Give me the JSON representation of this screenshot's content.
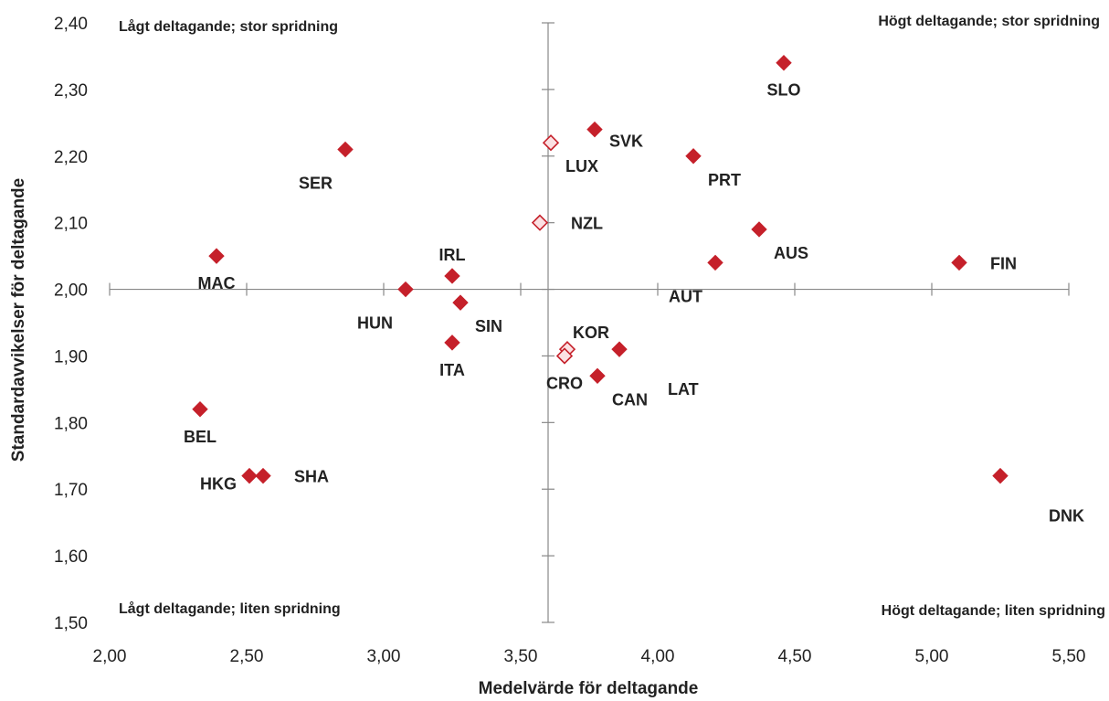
{
  "chart_data": {
    "type": "scatter",
    "title": "",
    "xlabel": "Medelvärde för deltagande",
    "ylabel": "Standardavvikelser för deltagande",
    "xlim": [
      2.0,
      5.5
    ],
    "ylim": [
      1.5,
      2.4
    ],
    "x_ticks": [
      "2,00",
      "2,50",
      "3,00",
      "3,50",
      "4,00",
      "4,50",
      "5,00",
      "5,50"
    ],
    "y_ticks": [
      "1,50",
      "1,60",
      "1,70",
      "1,80",
      "1,90",
      "2,00",
      "2,10",
      "2,20",
      "2,30",
      "2,40"
    ],
    "crosshair": {
      "x": 3.6,
      "y": 2.0
    },
    "grid": false,
    "legend": "none",
    "colors": {
      "filled": "#c5202a",
      "hollow_fill": "#fbe1e3",
      "hollow_stroke": "#c5202a"
    },
    "quadrant_labels": {
      "top_left": "Lågt deltagande; stor spridning",
      "top_right": "Högt deltagande; stor spridning",
      "bottom_left": "Lågt deltagande; liten spridning",
      "bottom_right": "Högt deltagande; liten spridning"
    },
    "points": [
      {
        "label": "SLO",
        "x": 4.46,
        "y": 2.34,
        "style": "filled",
        "label_pos": "below"
      },
      {
        "label": "SVK",
        "x": 3.77,
        "y": 2.24,
        "style": "filled",
        "label_pos": "right"
      },
      {
        "label": "LUX",
        "x": 3.61,
        "y": 2.22,
        "style": "hollow",
        "label_pos": "below-right"
      },
      {
        "label": "PRT",
        "x": 4.13,
        "y": 2.2,
        "style": "filled",
        "label_pos": "below-right"
      },
      {
        "label": "SER",
        "x": 2.86,
        "y": 2.21,
        "style": "filled",
        "label_pos": "below-left"
      },
      {
        "label": "NZL",
        "x": 3.57,
        "y": 2.1,
        "style": "hollow",
        "label_pos": "far-right"
      },
      {
        "label": "AUS",
        "x": 4.37,
        "y": 2.09,
        "style": "filled",
        "label_pos": "below-right"
      },
      {
        "label": "MAC",
        "x": 2.39,
        "y": 2.05,
        "style": "filled",
        "label_pos": "below"
      },
      {
        "label": "IRL",
        "x": 3.25,
        "y": 2.02,
        "style": "filled",
        "label_pos": "above"
      },
      {
        "label": "AUT",
        "x": 4.21,
        "y": 2.04,
        "style": "filled",
        "label_pos": "below-left"
      },
      {
        "label": "FIN",
        "x": 5.1,
        "y": 2.04,
        "style": "filled",
        "label_pos": "far-right"
      },
      {
        "label": "HUN",
        "x": 3.08,
        "y": 2.0,
        "style": "filled",
        "label_pos": "below-left"
      },
      {
        "label": "SIN",
        "x": 3.28,
        "y": 1.98,
        "style": "filled",
        "label_pos": "below-right"
      },
      {
        "label": "ITA",
        "x": 3.25,
        "y": 1.92,
        "style": "filled",
        "label_pos": "below"
      },
      {
        "label": "KOR",
        "x": 3.67,
        "y": 1.91,
        "style": "hollow",
        "label_pos": "above-right"
      },
      {
        "label": "CRO",
        "x": 3.66,
        "y": 1.9,
        "style": "hollow",
        "label_pos": "below"
      },
      {
        "label": "LAT",
        "x": 3.86,
        "y": 1.91,
        "style": "filled",
        "label_pos": "far-below-right"
      },
      {
        "label": "CAN",
        "x": 3.78,
        "y": 1.87,
        "style": "filled",
        "label_pos": "below-right"
      },
      {
        "label": "BEL",
        "x": 2.33,
        "y": 1.82,
        "style": "filled",
        "label_pos": "below"
      },
      {
        "label": "HKG",
        "x": 2.51,
        "y": 1.72,
        "style": "filled",
        "label_pos": "left"
      },
      {
        "label": "SHA",
        "x": 2.56,
        "y": 1.72,
        "style": "filled",
        "label_pos": "far-right"
      },
      {
        "label": "DNK",
        "x": 5.25,
        "y": 1.72,
        "style": "filled",
        "label_pos": "far-below-right"
      }
    ]
  }
}
